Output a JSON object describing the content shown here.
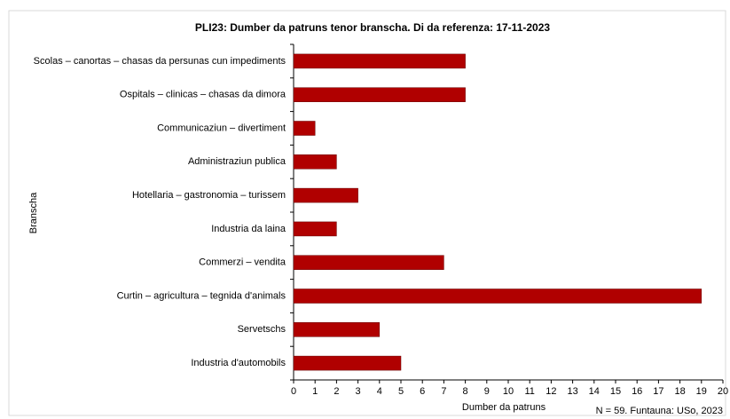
{
  "chart_data": {
    "type": "bar",
    "orientation": "horizontal",
    "title": "PLI23: Dumber da patruns tenor branscha. Di da referenza: 17-11-2023",
    "x_label": "Dumber da patruns",
    "y_label": "Branscha",
    "note": "N = 59. Funtauna: USo, 2023",
    "categories": [
      "Scolas – canortas – chasas da persunas cun impediments",
      "Ospitals – clinicas – chasas da dimora",
      "Communicaziun  – divertiment",
      "Administraziun publica",
      "Hotellaria – gastronomia – turissem",
      "Industria da laina",
      "Commerzi  – vendita",
      "Curtin – agricultura – tegnida d'animals",
      "Servetschs",
      "Industria d'automobils"
    ],
    "values": [
      8,
      8,
      1,
      2,
      3,
      2,
      7,
      19,
      4,
      5
    ],
    "color": "#b00000",
    "xlim": [
      0,
      20
    ],
    "xticks": [
      0,
      1,
      2,
      3,
      4,
      5,
      6,
      7,
      8,
      9,
      10,
      11,
      12,
      13,
      14,
      15,
      16,
      17,
      18,
      19,
      20
    ],
    "grid": false
  }
}
